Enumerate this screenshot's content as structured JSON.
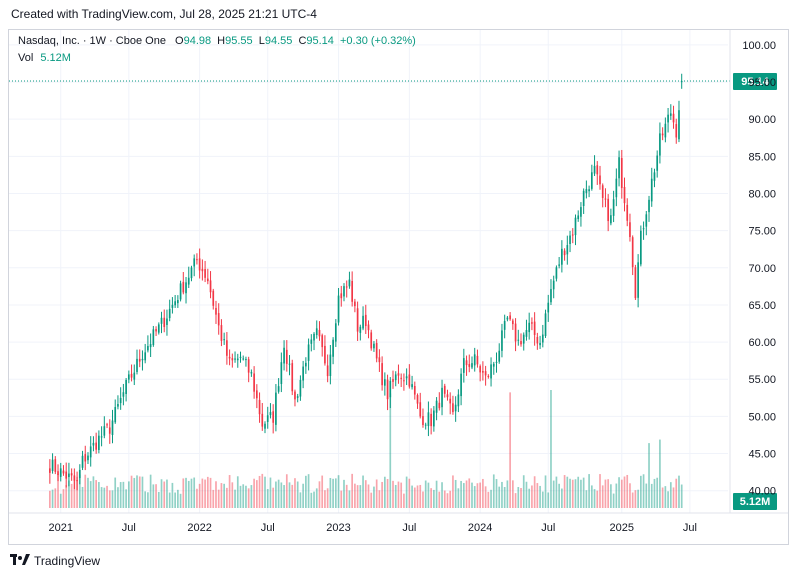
{
  "header": {
    "created_text": "Created with TradingView.com, Jul 28, 2025 21:21 UTC-4"
  },
  "legend": {
    "symbol": "Nasdaq, Inc. · 1W · Cboe One",
    "open_label": "O",
    "open": "94.98",
    "high_label": "H",
    "high": "95.55",
    "low_label": "L",
    "low": "94.55",
    "close_label": "C",
    "close": "95.14",
    "change": "+0.30 (+0.32%)"
  },
  "volume_legend": {
    "label": "Vol",
    "value": "5.12M"
  },
  "footer": {
    "brand": "TradingView"
  },
  "colors": {
    "up": "#089981",
    "down": "#f23645",
    "grid": "#f0f3fa",
    "text": "#131722"
  },
  "chart_data": {
    "type": "candlestick",
    "title": "Nasdaq, Inc. · 1W · Cboe One",
    "ylim": [
      37,
      102
    ],
    "y_ticks": [
      "40.00",
      "45.00",
      "50.00",
      "55.00",
      "60.00",
      "65.00",
      "70.00",
      "75.00",
      "80.00",
      "85.00",
      "90.00",
      "95.00",
      "100.00"
    ],
    "x_ticks": [
      {
        "label": "2021",
        "week": 4
      },
      {
        "label": "Jul",
        "week": 29
      },
      {
        "label": "2022",
        "week": 55
      },
      {
        "label": "Jul",
        "week": 80
      },
      {
        "label": "2023",
        "week": 106
      },
      {
        "label": "Jul",
        "week": 132
      },
      {
        "label": "2024",
        "week": 158
      },
      {
        "label": "Jul",
        "week": 183
      },
      {
        "label": "2025",
        "week": 210
      },
      {
        "label": "Jul",
        "week": 235
      }
    ],
    "x_range_weeks": [
      -15,
      249
    ],
    "last_price": "95.14",
    "last_volume": "5.12M",
    "anchors": [
      [
        0,
        43.5
      ],
      [
        6,
        42
      ],
      [
        10,
        41
      ],
      [
        12,
        44
      ],
      [
        18,
        47
      ],
      [
        22,
        48.5
      ],
      [
        28,
        54
      ],
      [
        34,
        58.5
      ],
      [
        42,
        63
      ],
      [
        48,
        67
      ],
      [
        54,
        71
      ],
      [
        58,
        68.5
      ],
      [
        62,
        62
      ],
      [
        66,
        57
      ],
      [
        70,
        58
      ],
      [
        74,
        55.5
      ],
      [
        78,
        49
      ],
      [
        82,
        50
      ],
      [
        86,
        60
      ],
      [
        90,
        52
      ],
      [
        94,
        58
      ],
      [
        98,
        61
      ],
      [
        102,
        56.5
      ],
      [
        106,
        66
      ],
      [
        110,
        68
      ],
      [
        113,
        62
      ],
      [
        116,
        63
      ],
      [
        120,
        57.5
      ],
      [
        124,
        53
      ],
      [
        128,
        56
      ],
      [
        132,
        55
      ],
      [
        136,
        50
      ],
      [
        140,
        49.5
      ],
      [
        144,
        53
      ],
      [
        148,
        50
      ],
      [
        152,
        57
      ],
      [
        156,
        57.5
      ],
      [
        160,
        55
      ],
      [
        164,
        58
      ],
      [
        168,
        63
      ],
      [
        172,
        60
      ],
      [
        176,
        62
      ],
      [
        180,
        60
      ],
      [
        184,
        67
      ],
      [
        188,
        72
      ],
      [
        192,
        75
      ],
      [
        196,
        80
      ],
      [
        200,
        83
      ],
      [
        203,
        79
      ],
      [
        206,
        76.5
      ],
      [
        209,
        84
      ],
      [
        213,
        75
      ],
      [
        215,
        67
      ],
      [
        217,
        74
      ],
      [
        219,
        78
      ],
      [
        224,
        87
      ],
      [
        228,
        91
      ],
      [
        230,
        88.5
      ],
      [
        232,
        95.1
      ]
    ],
    "volume_spikes": [
      [
        125,
        0.97
      ],
      [
        169,
        0.98
      ],
      [
        184,
        1.0
      ],
      [
        220,
        0.55
      ],
      [
        224,
        0.58
      ],
      [
        233,
        0.62
      ]
    ]
  }
}
